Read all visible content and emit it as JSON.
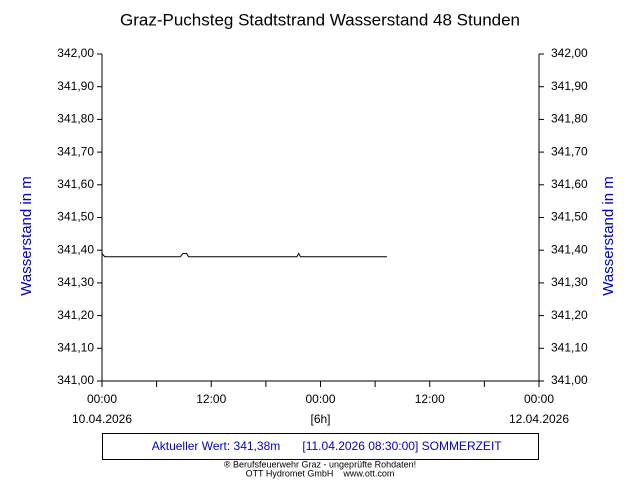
{
  "chart_data": {
    "type": "line",
    "title": "Graz-Puchsteg Stadtstrand Wasserstand 48 Stunden",
    "ylabel": "Wasserstand in m",
    "y2label": "Wasserstand in m",
    "x": [
      0,
      0.3,
      8.6,
      8.9,
      9.3,
      9.5,
      21.4,
      21.6,
      21.8,
      31.3
    ],
    "series": [
      {
        "name": "Wasserstand",
        "color": "#000000",
        "values": [
          341.39,
          341.38,
          341.38,
          341.39,
          341.39,
          341.38,
          341.38,
          341.39,
          341.38,
          341.38
        ]
      }
    ],
    "xlim": [
      0,
      48
    ],
    "xticks": [
      {
        "value": 0,
        "label": "00:00"
      },
      {
        "value": 12,
        "label": "12:00"
      },
      {
        "value": 24,
        "label": "00:00"
      },
      {
        "value": 36,
        "label": "12:00"
      },
      {
        "value": 48,
        "label": "00:00"
      }
    ],
    "xminorticks": [
      6,
      18,
      30,
      42
    ],
    "xdates": [
      "10.04.2026",
      "[6h]",
      "12.04.2026"
    ],
    "ylim": [
      341,
      342
    ],
    "yticks": [
      {
        "value": 341,
        "label": "341,00"
      },
      {
        "value": 341.1,
        "label": "341,10"
      },
      {
        "value": 341.2,
        "label": "341,20"
      },
      {
        "value": 341.3,
        "label": "341,30"
      },
      {
        "value": 341.4,
        "label": "341,40"
      },
      {
        "value": 341.5,
        "label": "341,50"
      },
      {
        "value": 341.6,
        "label": "341,60"
      },
      {
        "value": 341.7,
        "label": "341,70"
      },
      {
        "value": 341.8,
        "label": "341,80"
      },
      {
        "value": 341.9,
        "label": "341,90"
      },
      {
        "value": 342,
        "label": "342,00"
      }
    ],
    "y2lim": [
      341,
      342
    ],
    "y2ticks": [
      {
        "value": 341,
        "label": "341,00"
      },
      {
        "value": 341.1,
        "label": "341,10"
      },
      {
        "value": 341.2,
        "label": "341,20"
      },
      {
        "value": 341.3,
        "label": "341,30"
      },
      {
        "value": 341.4,
        "label": "341,40"
      },
      {
        "value": 341.5,
        "label": "341,50"
      },
      {
        "value": 341.6,
        "label": "341,60"
      },
      {
        "value": 341.7,
        "label": "341,70"
      },
      {
        "value": 341.8,
        "label": "341,80"
      },
      {
        "value": 341.9,
        "label": "341,90"
      },
      {
        "value": 342,
        "label": "342,00"
      }
    ],
    "annotations": [
      "Aktueller Wert: 341,38m",
      "[11.04.2026 08:30:00] SOMMERZEIT"
    ],
    "footer": [
      "® Berufsfeuerwehr Graz - ungeprüfte Rohdaten!",
      "OTT Hydromet GmbH    www.ott.com"
    ]
  }
}
